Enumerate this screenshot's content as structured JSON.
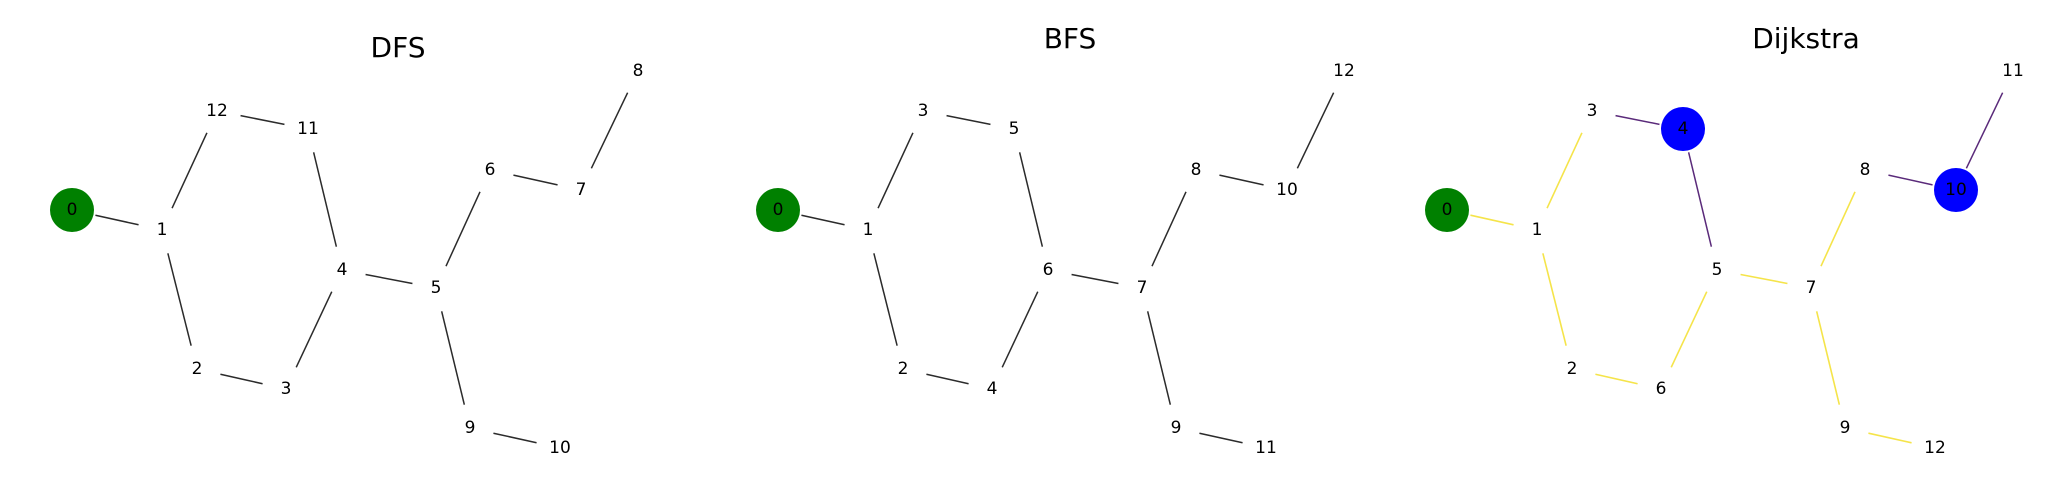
{
  "colors": {
    "background": "#ffffff",
    "edge_default": "#2b2b2b",
    "edge_dijkstra_main": "#f5e44a",
    "edge_dijkstra_alt": "#5a2a7a",
    "node_start": "#008000",
    "node_target": "#0000ff"
  },
  "panels": [
    {
      "id": "dfs",
      "title": "DFS",
      "node_labels": [
        "0",
        "1",
        "12",
        "11",
        "4",
        "5",
        "6",
        "7",
        "8",
        "2",
        "3",
        "9",
        "10"
      ],
      "edges": [
        [
          0,
          1,
          "default"
        ],
        [
          1,
          2,
          "default"
        ],
        [
          2,
          3,
          "default"
        ],
        [
          1,
          9,
          "default"
        ],
        [
          9,
          10,
          "default"
        ],
        [
          10,
          4,
          "default"
        ],
        [
          3,
          4,
          "default"
        ],
        [
          4,
          5,
          "default"
        ],
        [
          5,
          6,
          "default"
        ],
        [
          6,
          7,
          "default"
        ],
        [
          7,
          8,
          "default"
        ],
        [
          5,
          11,
          "default"
        ],
        [
          11,
          12,
          "default"
        ]
      ],
      "highlighted_nodes": [
        [
          0,
          "start"
        ]
      ]
    },
    {
      "id": "bfs",
      "title": "BFS",
      "node_labels": [
        "0",
        "1",
        "3",
        "5",
        "6",
        "7",
        "8",
        "10",
        "12",
        "2",
        "4",
        "9",
        "11"
      ],
      "edges": [
        [
          0,
          1,
          "default"
        ],
        [
          1,
          2,
          "default"
        ],
        [
          2,
          3,
          "default"
        ],
        [
          1,
          9,
          "default"
        ],
        [
          9,
          10,
          "default"
        ],
        [
          10,
          4,
          "default"
        ],
        [
          3,
          4,
          "default"
        ],
        [
          4,
          5,
          "default"
        ],
        [
          5,
          6,
          "default"
        ],
        [
          6,
          7,
          "default"
        ],
        [
          7,
          8,
          "default"
        ],
        [
          5,
          11,
          "default"
        ],
        [
          11,
          12,
          "default"
        ]
      ],
      "highlighted_nodes": [
        [
          0,
          "start"
        ]
      ]
    },
    {
      "id": "dijkstra",
      "title": "Dijkstra",
      "node_labels": [
        "0",
        "1",
        "3",
        "4",
        "5",
        "7",
        "8",
        "10",
        "11",
        "2",
        "6",
        "9",
        "12"
      ],
      "edges": [
        [
          0,
          1,
          "main"
        ],
        [
          1,
          2,
          "main"
        ],
        [
          2,
          3,
          "alt"
        ],
        [
          1,
          9,
          "main"
        ],
        [
          9,
          10,
          "main"
        ],
        [
          10,
          4,
          "main"
        ],
        [
          3,
          4,
          "alt"
        ],
        [
          4,
          5,
          "main"
        ],
        [
          5,
          6,
          "main"
        ],
        [
          6,
          7,
          "alt"
        ],
        [
          7,
          8,
          "alt"
        ],
        [
          5,
          11,
          "main"
        ],
        [
          11,
          12,
          "main"
        ]
      ],
      "highlighted_nodes": [
        [
          0,
          "start"
        ],
        [
          3,
          "target"
        ],
        [
          7,
          "target"
        ]
      ]
    }
  ]
}
